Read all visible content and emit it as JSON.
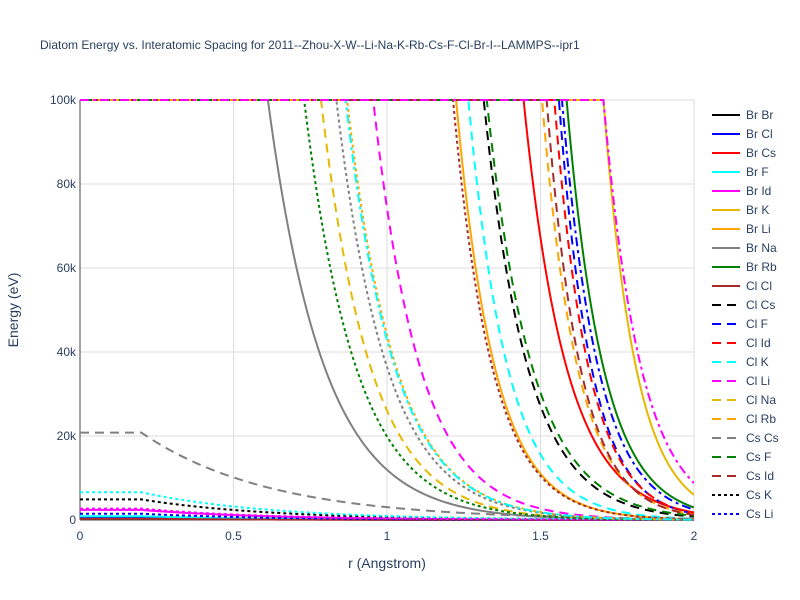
{
  "chart_data": {
    "type": "line",
    "title": "Diatom Energy vs. Interatomic Spacing for 2011--Zhou-X-W--Li-Na-K-Rb-Cs-F-Cl-Br-I--LAMMPS--ipr1",
    "xlabel": "r (Angstrom)",
    "ylabel": "Energy (eV)",
    "xlim": [
      0,
      2
    ],
    "ylim": [
      0,
      100000
    ],
    "x_ticks": [
      0,
      0.5,
      1,
      1.5,
      2
    ],
    "x_tick_labels": [
      "0",
      "0.5",
      "1",
      "1.5",
      "2"
    ],
    "y_ticks": [
      0,
      20000,
      40000,
      60000,
      80000,
      100000
    ],
    "y_tick_labels": [
      "0",
      "20k",
      "40k",
      "60k",
      "80k",
      "100k"
    ],
    "grid": true,
    "legend_position": "right",
    "series": [
      {
        "name": "Br Br",
        "color": "#000000",
        "dash": "solid",
        "kind": "plateau",
        "r0": 0.2,
        "y0": 500
      },
      {
        "name": "Br Cl",
        "color": "#0000ff",
        "dash": "solid",
        "kind": "plateau",
        "r0": 0.2,
        "y0": 600
      },
      {
        "name": "Br Cs",
        "color": "#ff0000",
        "dash": "solid",
        "kind": "wall",
        "r_cap": 1.445,
        "y_end": 1800
      },
      {
        "name": "Br F",
        "color": "#00ffff",
        "dash": "solid",
        "kind": "plateau",
        "r0": 0.2,
        "y0": 900
      },
      {
        "name": "Br Id",
        "color": "#ff00ff",
        "dash": "solid",
        "kind": "plateau",
        "r0": 0.2,
        "y0": 2400
      },
      {
        "name": "Br K",
        "color": "#e6b800",
        "dash": "solid",
        "kind": "wall",
        "r_cap": 1.705,
        "y_end": 6000
      },
      {
        "name": "Br Li",
        "color": "#ffa500",
        "dash": "solid",
        "kind": "wall",
        "r_cap": 1.225,
        "y_end": 200
      },
      {
        "name": "Br Na",
        "color": "#808080",
        "dash": "solid",
        "kind": "wall",
        "r_cap": 0.612,
        "y_end": 50
      },
      {
        "name": "Br Rb",
        "color": "#008000",
        "dash": "solid",
        "kind": "wall",
        "r_cap": 1.585,
        "y_end": 3000
      },
      {
        "name": "Cl Cl",
        "color": "#a52a2a",
        "dash": "solid",
        "kind": "plateau",
        "r0": 0.2,
        "y0": 300
      },
      {
        "name": "Cl Cs",
        "color": "#000000",
        "dash": "dash",
        "kind": "wall",
        "r_cap": 1.315,
        "y_end": 800
      },
      {
        "name": "Cl F",
        "color": "#0000ff",
        "dash": "dash",
        "kind": "wall",
        "r_cap": 1.56,
        "y_end": 1500
      },
      {
        "name": "Cl Id",
        "color": "#ff0000",
        "dash": "dash",
        "kind": "wall",
        "r_cap": 1.545,
        "y_end": 1600
      },
      {
        "name": "Cl K",
        "color": "#00ffff",
        "dash": "dash",
        "kind": "wall",
        "r_cap": 1.265,
        "y_end": 300
      },
      {
        "name": "Cl Li",
        "color": "#ff00ff",
        "dash": "dash",
        "kind": "wall",
        "r_cap": 0.955,
        "y_end": 100
      },
      {
        "name": "Cl Na",
        "color": "#e6b800",
        "dash": "dash",
        "kind": "wall",
        "r_cap": 0.785,
        "y_end": 50
      },
      {
        "name": "Cl Rb",
        "color": "#ffa500",
        "dash": "dash",
        "kind": "wall",
        "r_cap": 1.505,
        "y_end": 1300
      },
      {
        "name": "Cs Cs",
        "color": "#808080",
        "dash": "dash",
        "kind": "plateau",
        "r0": 0.2,
        "y0": 20800
      },
      {
        "name": "Cs F",
        "color": "#008000",
        "dash": "dash",
        "kind": "wall",
        "r_cap": 1.325,
        "y_end": 1000
      },
      {
        "name": "Cs Id",
        "color": "#a52a2a",
        "dash": "dash",
        "kind": "wall",
        "r_cap": 1.52,
        "y_end": 1200
      },
      {
        "name": "Cs K",
        "color": "#000000",
        "dash": "dot",
        "kind": "plateau",
        "r0": 0.2,
        "y0": 4900
      },
      {
        "name": "Cs Li",
        "color": "#0000ff",
        "dash": "dot",
        "kind": "plateau",
        "r0": 0.2,
        "y0": 1500
      },
      {
        "color": "#00ffff",
        "dash": "dot",
        "kind": "plateau",
        "r0": 0.2,
        "y0": 6600
      },
      {
        "color": "#ff00ff",
        "dash": "dot",
        "kind": "plateau",
        "r0": 0.2,
        "y0": 2700
      },
      {
        "color": "#008000",
        "dash": "dot",
        "kind": "wall",
        "r_cap": 0.73,
        "y_end": 50
      },
      {
        "color": "#a52a2a",
        "dash": "dot",
        "kind": "wall",
        "r_cap": 1.215,
        "y_end": 200
      },
      {
        "color": "#808080",
        "dash": "dot",
        "kind": "wall",
        "r_cap": 0.835,
        "y_end": 80
      },
      {
        "color": "#ffa500",
        "dash": "dot",
        "kind": "wall",
        "r_cap": 0.87,
        "y_end": 80
      },
      {
        "color": "#00ffff",
        "dash": "dashdot",
        "kind": "wall",
        "r_cap": 0.865,
        "y_end": 80
      },
      {
        "color": "#0000ff",
        "dash": "dashdot",
        "kind": "wall",
        "r_cap": 1.57,
        "y_end": 2500
      },
      {
        "color": "#ff00ff",
        "dash": "dashdot",
        "kind": "wall",
        "r_cap": 1.705,
        "y_end": 8800
      }
    ]
  }
}
